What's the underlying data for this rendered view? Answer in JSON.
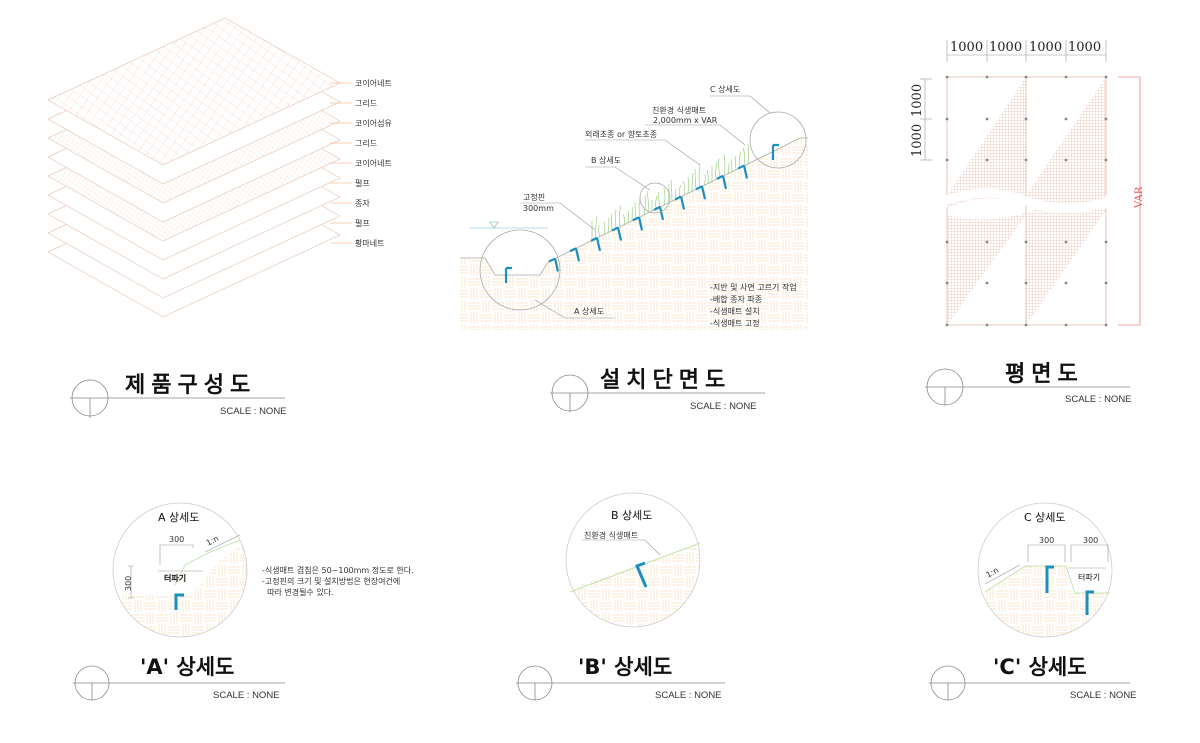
{
  "colors": {
    "layer_line": "#e8c9b8",
    "pin": "#1a8fc0",
    "grass": "#8cc870",
    "soil": "#fbe6c4",
    "var_dim": "#f05050"
  },
  "product": {
    "title": "제품구성도",
    "scale": "SCALE : NONE",
    "layers": [
      "코이어네트",
      "그리드",
      "코이어섬유",
      "그리드",
      "코이어네트",
      "펄프",
      "종자",
      "펄프",
      "황마네트"
    ]
  },
  "section": {
    "title": "설치단면도",
    "scale": "SCALE : NONE",
    "labels": {
      "c_detail": "C 상세도",
      "mat_line1": "친환경 식생매트",
      "mat_line2": "2,000mm x VAR",
      "grass": "외래초종 or 향토초종",
      "b_detail": "B 상세도",
      "pin_line1": "고정핀",
      "pin_line2": "300mm",
      "a_detail": "A 상세도"
    },
    "steps": [
      "-지반 및 사면 고르기 작업",
      "-배합 종자 파종",
      "-식생매트 설치",
      "-식생매트 고정"
    ]
  },
  "plan": {
    "title": "평면도",
    "scale": "SCALE : NONE",
    "top_dims": [
      "1000",
      "1000",
      "1000",
      "1000"
    ],
    "left_dims": [
      "1000",
      "1000"
    ],
    "var_label": "VAR"
  },
  "detail_a": {
    "title": "'A' 상세도",
    "circle_title": "A 상세도",
    "scale": "SCALE : NONE",
    "dim_w": "300",
    "dim_h": "300",
    "slope": "1:n",
    "trench": "터파기",
    "notes": [
      "-식생매트 겹침은 50~100mm 정도로 한다.",
      "-고정핀의 크기 및 설치방법은 현장여건에",
      "  따라 변경될수 있다."
    ]
  },
  "detail_b": {
    "title": "'B' 상세도",
    "circle_title": "B 상세도",
    "scale": "SCALE : NONE",
    "mat": "친환경 식생매트"
  },
  "detail_c": {
    "title": "'C' 상세도",
    "circle_title": "C 상세도",
    "scale": "SCALE : NONE",
    "dim1": "300",
    "dim2": "300",
    "slope": "1:n",
    "trench": "터파기"
  }
}
